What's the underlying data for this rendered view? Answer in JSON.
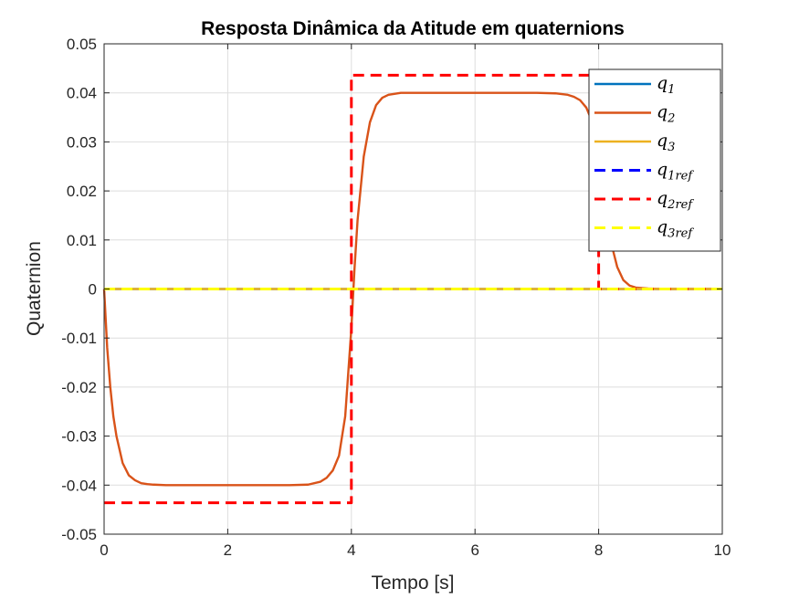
{
  "chart_data": {
    "type": "line",
    "title": "Resposta Dinâmica da Atitude em quaternions",
    "xlabel": "Tempo [s]",
    "ylabel": "Quaternion",
    "xlim": [
      0,
      10
    ],
    "ylim": [
      -0.05,
      0.05
    ],
    "x_ticks": [
      0,
      2,
      4,
      6,
      8,
      10
    ],
    "x_tick_labels": [
      "0",
      "2",
      "4",
      "6",
      "8",
      "10"
    ],
    "y_ticks": [
      -0.05,
      -0.04,
      -0.03,
      -0.02,
      -0.01,
      0,
      0.01,
      0.02,
      0.03,
      0.04,
      0.05
    ],
    "y_tick_labels": [
      "-0.05",
      "-0.04",
      "-0.03",
      "-0.02",
      "-0.01",
      "0",
      "0.01",
      "0.02",
      "0.03",
      "0.04",
      "0.05"
    ],
    "grid": true,
    "legend_position": "top-right",
    "series": [
      {
        "name": "q1",
        "label_base": "q",
        "label_sub": "1",
        "color": "#0072BD",
        "style": "solid",
        "x": [
          0,
          10
        ],
        "y": [
          0,
          0
        ]
      },
      {
        "name": "q2",
        "label_base": "q",
        "label_sub": "2",
        "color": "#D95319",
        "style": "solid",
        "x": [
          0,
          0.05,
          0.1,
          0.15,
          0.2,
          0.3,
          0.4,
          0.5,
          0.6,
          0.7,
          0.8,
          1.0,
          1.5,
          2.0,
          2.5,
          3.0,
          3.3,
          3.5,
          3.6,
          3.7,
          3.8,
          3.9,
          4.0,
          4.05,
          4.1,
          4.2,
          4.3,
          4.4,
          4.5,
          4.6,
          4.8,
          5.0,
          6.0,
          7.0,
          7.3,
          7.5,
          7.6,
          7.7,
          7.8,
          7.9,
          8.0,
          8.05,
          8.1,
          8.2,
          8.3,
          8.4,
          8.5,
          8.6,
          8.8,
          9.0,
          10.0
        ],
        "y": [
          0,
          -0.012,
          -0.02,
          -0.026,
          -0.03,
          -0.0355,
          -0.038,
          -0.039,
          -0.0396,
          -0.0398,
          -0.0399,
          -0.04,
          -0.04,
          -0.04,
          -0.04,
          -0.04,
          -0.0399,
          -0.0393,
          -0.0385,
          -0.037,
          -0.034,
          -0.026,
          -0.008,
          0.004,
          0.014,
          0.027,
          0.034,
          0.0375,
          0.039,
          0.0396,
          0.04,
          0.04,
          0.04,
          0.04,
          0.0399,
          0.0396,
          0.0392,
          0.0385,
          0.037,
          0.034,
          0.028,
          0.023,
          0.017,
          0.0095,
          0.0045,
          0.0018,
          0.0007,
          0.0003,
          0.0001,
          0,
          0
        ]
      },
      {
        "name": "q3",
        "label_base": "q",
        "label_sub": "3",
        "color": "#EDB120",
        "style": "solid",
        "x": [
          0,
          10
        ],
        "y": [
          0,
          0
        ]
      },
      {
        "name": "q1ref",
        "label_base": "q",
        "label_sub": "1ref",
        "color": "#0000FF",
        "style": "dashed",
        "x": [
          0,
          10
        ],
        "y": [
          0,
          0
        ]
      },
      {
        "name": "q2ref",
        "label_base": "q",
        "label_sub": "2ref",
        "color": "#FF0000",
        "style": "dashed",
        "x": [
          0,
          4,
          4,
          8,
          8,
          10
        ],
        "y": [
          -0.0436,
          -0.0436,
          0.0436,
          0.0436,
          0,
          0
        ]
      },
      {
        "name": "q3ref",
        "label_base": "q",
        "label_sub": "3ref",
        "color": "#FFFF00",
        "style": "dashed",
        "x": [
          0,
          10
        ],
        "y": [
          0,
          0
        ]
      }
    ]
  }
}
